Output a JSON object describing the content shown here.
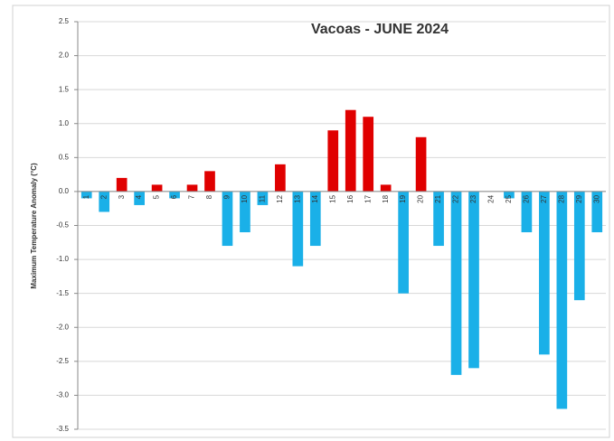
{
  "chart_data": {
    "type": "bar",
    "title": "Vacoas - JUNE 2024",
    "y_label": "Maximum Temperature Anomaly (°C)",
    "categories": [
      "1",
      "2",
      "3",
      "4",
      "5",
      "6",
      "7",
      "8",
      "9",
      "10",
      "11",
      "12",
      "13",
      "14",
      "15",
      "16",
      "17",
      "18",
      "19",
      "20",
      "21",
      "22",
      "23",
      "24",
      "25",
      "26",
      "27",
      "28",
      "29",
      "30"
    ],
    "values": [
      -0.1,
      -0.3,
      0.2,
      -0.2,
      0.1,
      -0.1,
      0.1,
      0.3,
      -0.8,
      -0.6,
      -0.2,
      0.4,
      -1.1,
      -0.8,
      0.9,
      1.2,
      1.1,
      0.1,
      -1.5,
      0.8,
      -0.8,
      -2.7,
      -2.6,
      0,
      -0.1,
      -0.6,
      -2.4,
      -3.2,
      -1.6,
      -0.6
    ],
    "positive_color": "#e00000",
    "negative_color": "#1ab0e8",
    "ylim": [
      -3.5,
      2.5
    ],
    "yticks": [
      2.5,
      {
        "value": 2,
        "label": "2.0"
      },
      1.5,
      {
        "value": 1,
        "label": "1.0"
      },
      0.5,
      {
        "value": 0,
        "label": "0.0"
      },
      -0.5,
      {
        "value": -1,
        "label": "-1.0"
      },
      -1.5,
      {
        "value": -2,
        "label": "-2.0"
      },
      -2.5,
      {
        "value": -3,
        "label": "-3.0"
      },
      -3.5
    ],
    "grid": true
  }
}
